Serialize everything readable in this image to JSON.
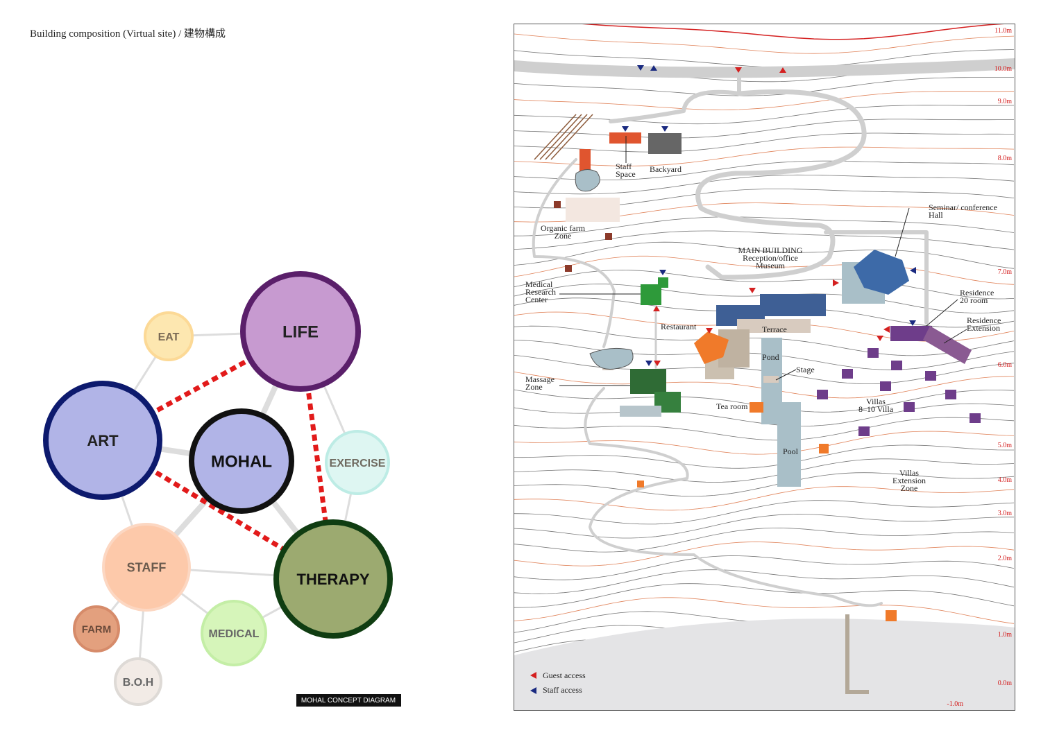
{
  "title": "Building composition (Virtual site) / 建物構成",
  "concept": {
    "nodes": [
      {
        "label": "LIFE"
      },
      {
        "label": "EAT"
      },
      {
        "label": "ART"
      },
      {
        "label": "MOHAL"
      },
      {
        "label": "EXERCISE"
      },
      {
        "label": "STAFF"
      },
      {
        "label": "THERAPY"
      },
      {
        "label": "FARM"
      },
      {
        "label": "MEDICAL"
      },
      {
        "label": "B.O.H"
      }
    ],
    "caption": "MOHAL   CONCEPT DIAGRAM"
  },
  "site": {
    "labels": [
      "Staff\nSpace",
      "Backyard",
      "Organic farm\nZone",
      "MAIN BUILDING\nReception/office\nMuseum",
      "Seminar/ conference\nHall",
      "Medical\nResearch\nCenter",
      "Restaurant",
      "Terrace",
      "Residence\n20 room",
      "Residence\nExtension",
      "Pond",
      "Stage",
      "Massage\nZone",
      "Tea room",
      "Villas\n8–10 Villa",
      "Pool",
      "Villas\nExtension\nZone"
    ],
    "elevations": [
      "11.0m",
      "10.0m",
      "9.0m",
      "8.0m",
      "7.0m",
      "6.0m",
      "5.0m",
      "4.0m",
      "3.0m",
      "2.0m",
      "1.0m",
      "0.0m",
      "-1.0m"
    ],
    "legend": [
      "Guest access",
      "Staff access"
    ]
  }
}
